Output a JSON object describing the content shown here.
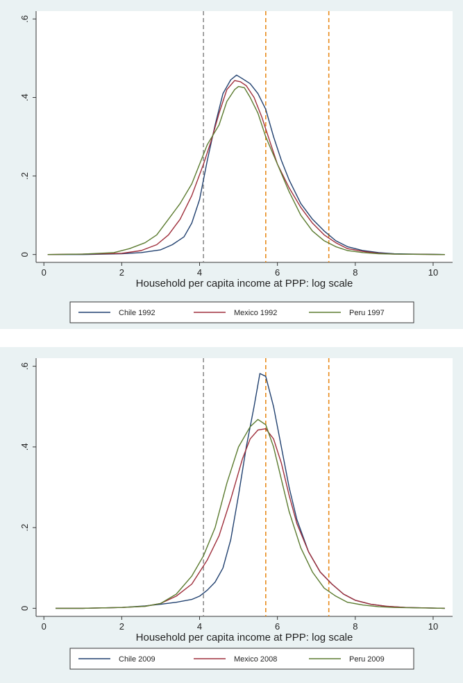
{
  "chart_data": [
    {
      "type": "line",
      "xlabel": "Household per capita income at PPP: log scale",
      "ylabel": "",
      "xlim": [
        -0.2,
        10.5
      ],
      "ylim": [
        -0.02,
        0.62
      ],
      "xticks": [
        "0",
        "2",
        "4",
        "6",
        "8",
        "10"
      ],
      "yticks": [
        "0",
        ".2",
        ".4",
        ".6"
      ],
      "legend_position": "bottom",
      "grid": false,
      "vlines": [
        {
          "x": 4.1,
          "color": "#8c8c8c"
        },
        {
          "x": 5.7,
          "color": "#e88a1a"
        },
        {
          "x": 7.32,
          "color": "#e88a1a"
        }
      ],
      "series": [
        {
          "name": "Chile 1992",
          "color": "#1f3f6e",
          "points": [
            [
              0.1,
              0
            ],
            [
              1,
              0
            ],
            [
              2,
              0.002
            ],
            [
              2.5,
              0.005
            ],
            [
              3,
              0.012
            ],
            [
              3.3,
              0.025
            ],
            [
              3.6,
              0.045
            ],
            [
              3.8,
              0.08
            ],
            [
              4.0,
              0.14
            ],
            [
              4.2,
              0.24
            ],
            [
              4.4,
              0.33
            ],
            [
              4.6,
              0.41
            ],
            [
              4.8,
              0.445
            ],
            [
              4.95,
              0.457
            ],
            [
              5.1,
              0.448
            ],
            [
              5.3,
              0.435
            ],
            [
              5.5,
              0.41
            ],
            [
              5.7,
              0.37
            ],
            [
              5.9,
              0.3
            ],
            [
              6.1,
              0.24
            ],
            [
              6.3,
              0.19
            ],
            [
              6.6,
              0.13
            ],
            [
              6.9,
              0.09
            ],
            [
              7.2,
              0.06
            ],
            [
              7.5,
              0.035
            ],
            [
              7.8,
              0.02
            ],
            [
              8.2,
              0.01
            ],
            [
              8.6,
              0.005
            ],
            [
              9,
              0.002
            ],
            [
              9.5,
              0.001
            ],
            [
              10.3,
              0
            ]
          ]
        },
        {
          "name": "Mexico 1992",
          "color": "#9e2d3a",
          "points": [
            [
              0.1,
              0
            ],
            [
              1,
              0.001
            ],
            [
              2,
              0.003
            ],
            [
              2.5,
              0.01
            ],
            [
              2.9,
              0.025
            ],
            [
              3.2,
              0.05
            ],
            [
              3.5,
              0.09
            ],
            [
              3.8,
              0.15
            ],
            [
              4.1,
              0.23
            ],
            [
              4.3,
              0.29
            ],
            [
              4.5,
              0.36
            ],
            [
              4.7,
              0.42
            ],
            [
              4.9,
              0.443
            ],
            [
              5.05,
              0.44
            ],
            [
              5.2,
              0.43
            ],
            [
              5.4,
              0.4
            ],
            [
              5.6,
              0.35
            ],
            [
              5.8,
              0.29
            ],
            [
              6.0,
              0.23
            ],
            [
              6.3,
              0.17
            ],
            [
              6.6,
              0.12
            ],
            [
              6.9,
              0.08
            ],
            [
              7.2,
              0.05
            ],
            [
              7.5,
              0.03
            ],
            [
              7.8,
              0.015
            ],
            [
              8.2,
              0.008
            ],
            [
              8.6,
              0.003
            ],
            [
              9,
              0.001
            ],
            [
              10.3,
              0
            ]
          ]
        },
        {
          "name": "Peru 1997",
          "color": "#5a7a2e",
          "points": [
            [
              0.1,
              0
            ],
            [
              1,
              0.001
            ],
            [
              1.8,
              0.005
            ],
            [
              2.2,
              0.015
            ],
            [
              2.6,
              0.03
            ],
            [
              2.9,
              0.05
            ],
            [
              3.2,
              0.09
            ],
            [
              3.5,
              0.13
            ],
            [
              3.8,
              0.18
            ],
            [
              4.0,
              0.23
            ],
            [
              4.2,
              0.28
            ],
            [
              4.5,
              0.33
            ],
            [
              4.7,
              0.39
            ],
            [
              4.9,
              0.42
            ],
            [
              5.0,
              0.428
            ],
            [
              5.15,
              0.425
            ],
            [
              5.3,
              0.4
            ],
            [
              5.5,
              0.36
            ],
            [
              5.7,
              0.3
            ],
            [
              6.0,
              0.23
            ],
            [
              6.3,
              0.16
            ],
            [
              6.6,
              0.1
            ],
            [
              6.9,
              0.06
            ],
            [
              7.2,
              0.035
            ],
            [
              7.5,
              0.02
            ],
            [
              7.8,
              0.01
            ],
            [
              8.2,
              0.005
            ],
            [
              8.6,
              0.002
            ],
            [
              9,
              0.001
            ],
            [
              10.3,
              0
            ]
          ]
        }
      ]
    },
    {
      "type": "line",
      "xlabel": "Household per capita income at PPP: log scale",
      "ylabel": "",
      "xlim": [
        -0.2,
        10.5
      ],
      "ylim": [
        -0.02,
        0.62
      ],
      "xticks": [
        "0",
        "2",
        "4",
        "6",
        "8",
        "10"
      ],
      "yticks": [
        "0",
        ".2",
        ".4",
        ".6"
      ],
      "legend_position": "bottom",
      "grid": false,
      "vlines": [
        {
          "x": 4.1,
          "color": "#8c8c8c"
        },
        {
          "x": 5.7,
          "color": "#e88a1a"
        },
        {
          "x": 7.32,
          "color": "#e88a1a"
        }
      ],
      "series": [
        {
          "name": "Chile 2009",
          "color": "#1f3f6e",
          "points": [
            [
              0.3,
              0
            ],
            [
              1,
              0
            ],
            [
              2,
              0.002
            ],
            [
              2.6,
              0.006
            ],
            [
              3.0,
              0.01
            ],
            [
              3.4,
              0.015
            ],
            [
              3.8,
              0.022
            ],
            [
              4.0,
              0.03
            ],
            [
              4.2,
              0.045
            ],
            [
              4.4,
              0.065
            ],
            [
              4.6,
              0.1
            ],
            [
              4.8,
              0.17
            ],
            [
              5.0,
              0.28
            ],
            [
              5.2,
              0.4
            ],
            [
              5.4,
              0.5
            ],
            [
              5.55,
              0.582
            ],
            [
              5.7,
              0.575
            ],
            [
              5.9,
              0.5
            ],
            [
              6.1,
              0.4
            ],
            [
              6.3,
              0.3
            ],
            [
              6.5,
              0.22
            ],
            [
              6.8,
              0.14
            ],
            [
              7.1,
              0.09
            ],
            [
              7.4,
              0.06
            ],
            [
              7.7,
              0.035
            ],
            [
              8.0,
              0.02
            ],
            [
              8.4,
              0.01
            ],
            [
              8.8,
              0.005
            ],
            [
              9.3,
              0.002
            ],
            [
              10.3,
              0
            ]
          ]
        },
        {
          "name": "Mexico 2008",
          "color": "#9e2d3a",
          "points": [
            [
              0.3,
              0
            ],
            [
              1,
              0
            ],
            [
              1.5,
              0.001
            ],
            [
              2,
              0.002
            ],
            [
              2.6,
              0.005
            ],
            [
              3.0,
              0.012
            ],
            [
              3.4,
              0.03
            ],
            [
              3.8,
              0.06
            ],
            [
              4.2,
              0.12
            ],
            [
              4.5,
              0.18
            ],
            [
              4.8,
              0.27
            ],
            [
              5.1,
              0.37
            ],
            [
              5.3,
              0.42
            ],
            [
              5.5,
              0.442
            ],
            [
              5.7,
              0.445
            ],
            [
              5.9,
              0.42
            ],
            [
              6.1,
              0.36
            ],
            [
              6.3,
              0.28
            ],
            [
              6.5,
              0.21
            ],
            [
              6.8,
              0.14
            ],
            [
              7.1,
              0.09
            ],
            [
              7.4,
              0.06
            ],
            [
              7.7,
              0.035
            ],
            [
              8.0,
              0.02
            ],
            [
              8.4,
              0.01
            ],
            [
              8.8,
              0.005
            ],
            [
              9.3,
              0.002
            ],
            [
              10.3,
              0
            ]
          ]
        },
        {
          "name": "Peru 2009",
          "color": "#5a7a2e",
          "points": [
            [
              0.3,
              0
            ],
            [
              1,
              0
            ],
            [
              1.5,
              0.001
            ],
            [
              2,
              0.002
            ],
            [
              2.6,
              0.005
            ],
            [
              3.0,
              0.012
            ],
            [
              3.4,
              0.035
            ],
            [
              3.8,
              0.08
            ],
            [
              4.1,
              0.13
            ],
            [
              4.4,
              0.2
            ],
            [
              4.7,
              0.31
            ],
            [
              5.0,
              0.4
            ],
            [
              5.3,
              0.45
            ],
            [
              5.5,
              0.468
            ],
            [
              5.7,
              0.455
            ],
            [
              5.9,
              0.4
            ],
            [
              6.1,
              0.32
            ],
            [
              6.3,
              0.24
            ],
            [
              6.6,
              0.15
            ],
            [
              6.9,
              0.09
            ],
            [
              7.2,
              0.05
            ],
            [
              7.5,
              0.03
            ],
            [
              7.8,
              0.015
            ],
            [
              8.2,
              0.008
            ],
            [
              8.6,
              0.004
            ],
            [
              9.0,
              0.002
            ],
            [
              10.3,
              0
            ]
          ]
        }
      ]
    }
  ]
}
